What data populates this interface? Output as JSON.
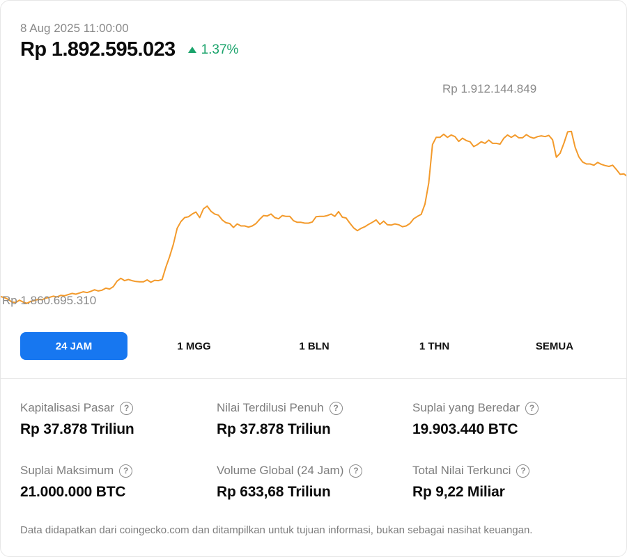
{
  "header": {
    "timestamp": "8 Aug 2025 11:00:00",
    "price": "Rp 1.892.595.023",
    "change": "1.37%",
    "change_direction": "up",
    "up_color": "#1aa36b"
  },
  "chart_data": {
    "type": "line",
    "title": "",
    "xlabel": "",
    "ylabel": "",
    "line_color": "#f39a2b",
    "grid": false,
    "high_label": "Rp 1.912.144.849",
    "low_label": "Rp 1.860.695.310",
    "high_value": 1912144849,
    "low_value": 1860695310,
    "ylim": [
      1858000000,
      1918000000
    ],
    "series": [
      {
        "values": [
          1862400000,
          1862100000,
          1861700000,
          1861000000,
          1860900000,
          1861500000,
          1861000000,
          1860695310,
          1861200000,
          1861400000,
          1861700000,
          1861600000,
          1862000000,
          1862200000,
          1862500000,
          1862300000,
          1862700000,
          1862600000,
          1862900000,
          1863200000,
          1863000000,
          1863300000,
          1863600000,
          1863400000,
          1863700000,
          1864100000,
          1863800000,
          1864000000,
          1864500000,
          1864300000,
          1864900000,
          1866300000,
          1867000000,
          1866400000,
          1866700000,
          1866400000,
          1866200000,
          1866100000,
          1866100000,
          1866600000,
          1866000000,
          1866500000,
          1866400000,
          1866700000,
          1869800000,
          1872500000,
          1875600000,
          1879600000,
          1881300000,
          1882300000,
          1882500000,
          1883200000,
          1883700000,
          1882300000,
          1884500000,
          1885200000,
          1883900000,
          1883200000,
          1882900000,
          1881700000,
          1881000000,
          1880800000,
          1879800000,
          1880700000,
          1880200000,
          1880200000,
          1879900000,
          1880200000,
          1880800000,
          1881900000,
          1882800000,
          1882700000,
          1883200000,
          1882300000,
          1882000000,
          1882800000,
          1882600000,
          1882600000,
          1881500000,
          1881100000,
          1881100000,
          1880900000,
          1880900000,
          1881200000,
          1882500000,
          1882600000,
          1882600000,
          1882800000,
          1883200000,
          1882600000,
          1883800000,
          1882400000,
          1882200000,
          1880900000,
          1879700000,
          1879000000,
          1879600000,
          1880000000,
          1880600000,
          1881100000,
          1881700000,
          1880600000,
          1881400000,
          1880500000,
          1880400000,
          1880700000,
          1880500000,
          1880000000,
          1880200000,
          1880800000,
          1882000000,
          1882600000,
          1883100000,
          1885700000,
          1891000000,
          1900700000,
          1902500000,
          1902500000,
          1903300000,
          1902500000,
          1903100000,
          1902700000,
          1901500000,
          1902300000,
          1901700000,
          1901400000,
          1900200000,
          1900700000,
          1901400000,
          1901000000,
          1901800000,
          1901000000,
          1901000000,
          1900800000,
          1902300000,
          1903100000,
          1902500000,
          1903100000,
          1902400000,
          1902400000,
          1903200000,
          1902600000,
          1902300000,
          1902700000,
          1902900000,
          1902700000,
          1903000000,
          1901900000,
          1897500000,
          1898500000,
          1901000000,
          1903900000,
          1904000000,
          1900000000,
          1897600000,
          1896300000,
          1895800000,
          1895800000,
          1895500000,
          1896200000,
          1895700000,
          1895400000,
          1895200000,
          1895500000,
          1894400000,
          1893200000,
          1893300000,
          1892595023
        ]
      }
    ]
  },
  "range_tabs": {
    "items": [
      "24 JAM",
      "1 MGG",
      "1 BLN",
      "1 THN",
      "SEMUA"
    ],
    "active_index": 0,
    "active_color": "#1777f0"
  },
  "stats": [
    {
      "label": "Kapitalisasi Pasar",
      "value": "Rp 37.878 Triliun"
    },
    {
      "label": "Nilai Terdilusi Penuh",
      "value": "Rp 37.878 Triliun"
    },
    {
      "label": "Suplai yang Beredar",
      "value": "19.903.440 BTC"
    },
    {
      "label": "Suplai Maksimum",
      "value": "21.000.000 BTC"
    },
    {
      "label": "Volume Global (24 Jam)",
      "value": "Rp 633,68 Triliun"
    },
    {
      "label": "Total Nilai Terkunci",
      "value": "Rp 9,22 Miliar"
    }
  ],
  "help_icon": "question-circle-icon",
  "disclaimer": "Data didapatkan dari coingecko.com dan ditampilkan untuk tujuan informasi, bukan sebagai nasihat keuangan."
}
